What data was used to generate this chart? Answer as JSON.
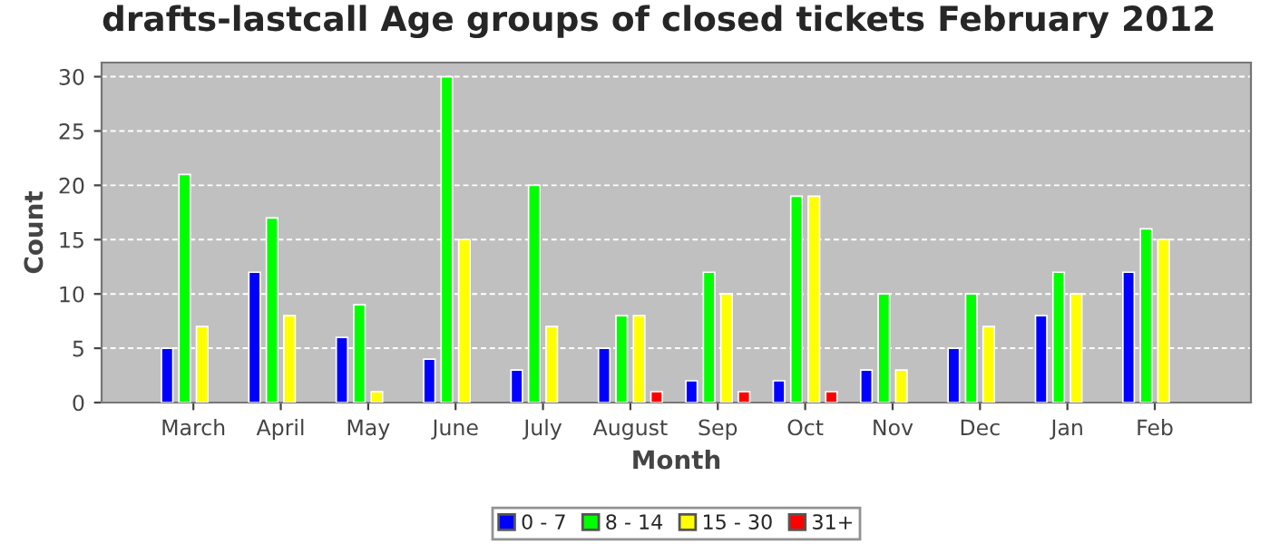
{
  "chart_data": {
    "type": "bar",
    "title": "drafts-lastcall Age groups of closed tickets February 2012",
    "xlabel": "Month",
    "ylabel": "Count",
    "categories": [
      "March",
      "April",
      "May",
      "June",
      "July",
      "August",
      "Sep",
      "Oct",
      "Nov",
      "Dec",
      "Jan",
      "Feb"
    ],
    "series": [
      {
        "name": "0 - 7",
        "color": "#0000ff",
        "values": [
          5,
          12,
          6,
          4,
          3,
          5,
          2,
          2,
          3,
          5,
          8,
          12
        ]
      },
      {
        "name": "8 - 14",
        "color": "#00ff00",
        "values": [
          21,
          17,
          9,
          30,
          20,
          8,
          12,
          19,
          10,
          10,
          12,
          16
        ]
      },
      {
        "name": "15 - 30",
        "color": "#ffff00",
        "values": [
          7,
          8,
          1,
          15,
          7,
          8,
          10,
          19,
          3,
          7,
          10,
          15
        ]
      },
      {
        "name": "31+",
        "color": "#ff0000",
        "values": [
          null,
          null,
          null,
          null,
          null,
          1,
          1,
          1,
          null,
          null,
          null,
          null
        ]
      }
    ],
    "ylim": [
      0,
      31.3
    ],
    "yticks": [
      0,
      5,
      10,
      15,
      20,
      25,
      30
    ],
    "grid": "y",
    "legend": "bottom"
  }
}
